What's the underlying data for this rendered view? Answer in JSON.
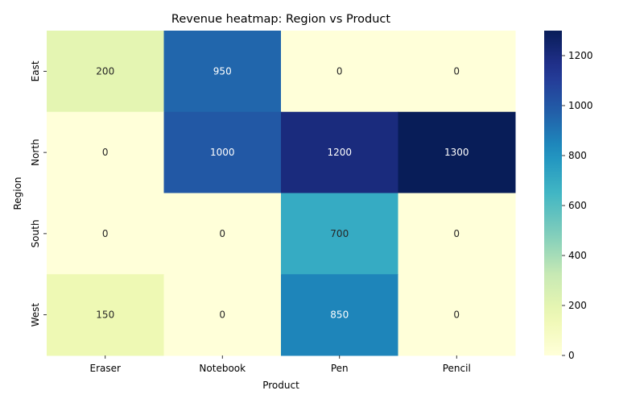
{
  "chart_data": {
    "type": "heatmap",
    "title": "Revenue heatmap: Region vs Product",
    "xlabel": "Product",
    "ylabel": "Region",
    "x_categories": [
      "Eraser",
      "Notebook",
      "Pen",
      "Pencil"
    ],
    "y_categories": [
      "East",
      "North",
      "South",
      "West"
    ],
    "values": [
      [
        200,
        950,
        0,
        0
      ],
      [
        0,
        1000,
        1200,
        1300
      ],
      [
        0,
        0,
        700,
        0
      ],
      [
        150,
        0,
        850,
        0
      ]
    ],
    "colormap": "YlGnBu",
    "vmin": 0,
    "vmax": 1300,
    "colorbar_ticks": [
      0,
      200,
      400,
      600,
      800,
      1000,
      1200
    ],
    "annotate": true,
    "grid": false
  }
}
